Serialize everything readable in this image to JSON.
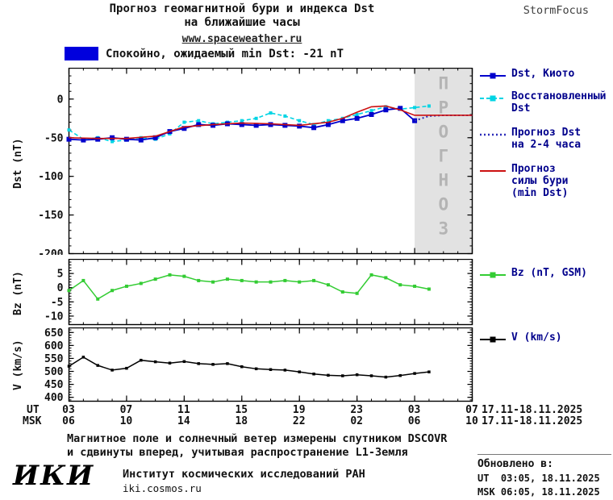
{
  "header": {
    "title_line1": "Прогноз геомагнитной бури и индекса Dst",
    "title_line2": "на ближайшие часы",
    "url": "www.spaceweather.ru",
    "brand": "StormFocus"
  },
  "status": {
    "swatch_color": "#0000dd",
    "label": "Спокойно, ожидаемый min Dst: -21 nT"
  },
  "legend_main": [
    {
      "label": "Dst, Киото",
      "color": "#0000cc",
      "style": "line-square"
    },
    {
      "label": "Восстановленный\nDst",
      "color": "#00d4e4",
      "style": "dash-square"
    },
    {
      "label": "Прогноз Dst\nна 2-4 часа",
      "color": "#2a2ab8",
      "style": "dotted"
    },
    {
      "label": "Прогноз\nсилы бури\n(min Dst)",
      "color": "#cc1111",
      "style": "line"
    }
  ],
  "legend_bz": {
    "label": "Bz (nT, GSM)",
    "color": "#33cc33",
    "style": "line-square"
  },
  "legend_v": {
    "label": "V (km/s)",
    "color": "#000000",
    "style": "line-square"
  },
  "xaxis": {
    "ut_label": "UT",
    "msk_label": "MSK",
    "ut_ticks": [
      "03",
      "07",
      "11",
      "15",
      "19",
      "23",
      "03",
      "07"
    ],
    "msk_ticks": [
      "06",
      "10",
      "14",
      "18",
      "22",
      "02",
      "06",
      "10"
    ],
    "ut_date": "17.11-18.11.2025",
    "msk_date": "17.11-18.11.2025"
  },
  "footer": {
    "note_line1": "Магнитное поле и солнечный ветер измерены спутником DSCOVR",
    "note_line2": "и сдвинуты вперед, учитывая распространение L1-Земля",
    "updated_title": "Обновлено в:",
    "updated_ut": "UT  03:05, 18.11.2025",
    "updated_msk": "MSK 06:05, 18.11.2025",
    "logo": "ИКИ",
    "institute": "Институт космических исследований РАН",
    "institute_url": "iki.cosmos.ru"
  },
  "chart_data": [
    {
      "id": "dst",
      "type": "line",
      "title": "Прогноз геомагнитной бури и индекса Dst на ближайшие часы",
      "ylabel": "Dst (nT)",
      "xlabel": "UT / MSK (hours, 17.11-18.11.2025)",
      "ylim": [
        -200,
        40
      ],
      "yticks": [
        0,
        -50,
        -100,
        -150,
        -200
      ],
      "y_minor_step": 10,
      "xlim": [
        3,
        31
      ],
      "xticks": [
        3,
        7,
        11,
        15,
        19,
        23,
        27,
        31
      ],
      "legend_position": "right",
      "forecast_region": {
        "x0": 27,
        "x1": 31,
        "color": "#e2e2e2",
        "label": "ПРОГНОЗ",
        "text_color": "#b4b4b4"
      },
      "series": [
        {
          "name": "Восстановленный Dst",
          "color": "#00d4e4",
          "dash": "5,3",
          "marker": "square",
          "marker_size": 4,
          "width": 1.6,
          "x": [
            3,
            4,
            5,
            6,
            7,
            8,
            9,
            10,
            11,
            12,
            13,
            14,
            15,
            16,
            17,
            18,
            19,
            20,
            21,
            22,
            23,
            24,
            25,
            26,
            27,
            28
          ],
          "y": [
            -40,
            -52,
            -50,
            -55,
            -53,
            -50,
            -52,
            -45,
            -30,
            -28,
            -32,
            -30,
            -28,
            -25,
            -18,
            -22,
            -28,
            -33,
            -28,
            -25,
            -20,
            -15,
            -10,
            -13,
            -11,
            -9
          ]
        },
        {
          "name": "Dst, Киото",
          "color": "#0000cc",
          "marker": "square",
          "marker_size": 6,
          "width": 1.8,
          "x": [
            3,
            4,
            5,
            6,
            7,
            8,
            9,
            10,
            11,
            12,
            13,
            14,
            15,
            16,
            17,
            18,
            19,
            20,
            21,
            22,
            23,
            24,
            25,
            26,
            27
          ],
          "y": [
            -52,
            -53,
            -52,
            -50,
            -52,
            -53,
            -50,
            -42,
            -38,
            -33,
            -34,
            -32,
            -33,
            -34,
            -33,
            -34,
            -35,
            -37,
            -33,
            -28,
            -25,
            -20,
            -14,
            -12,
            -28
          ]
        },
        {
          "name": "Прогноз Dst на 2-4 часа",
          "color": "#2a2ab8",
          "dash": "2,3",
          "width": 2,
          "x": [
            27,
            28,
            29,
            30,
            31
          ],
          "y": [
            -28,
            -22,
            -21,
            -21,
            -21
          ]
        },
        {
          "name": "Прогноз силы бури (min Dst)",
          "color": "#cc1111",
          "width": 1.6,
          "x": [
            3,
            5,
            7,
            9,
            11,
            13,
            15,
            17,
            19,
            21,
            22,
            23,
            24,
            25,
            26,
            27,
            28,
            29,
            30,
            31
          ],
          "y": [
            -50,
            -51,
            -51,
            -48,
            -36,
            -33,
            -31,
            -32,
            -34,
            -30,
            -25,
            -17,
            -10,
            -9,
            -14,
            -21,
            -21,
            -21,
            -21,
            -21
          ]
        }
      ]
    },
    {
      "id": "bz",
      "type": "line",
      "title": "Bz (nT, GSM)",
      "ylabel": "Bz (nT)",
      "ylim": [
        -13,
        10
      ],
      "yticks": [
        5,
        0,
        -5,
        -10
      ],
      "y_minor_step": 1,
      "xlim": [
        3,
        31
      ],
      "xticks": [
        3,
        7,
        11,
        15,
        19,
        23,
        27,
        31
      ],
      "series": [
        {
          "name": "Bz (nT, GSM)",
          "color": "#33cc33",
          "marker": "square",
          "marker_size": 4,
          "width": 1.5,
          "x": [
            3,
            4,
            5,
            6,
            7,
            8,
            9,
            10,
            11,
            12,
            13,
            14,
            15,
            16,
            17,
            18,
            19,
            20,
            21,
            22,
            23,
            24,
            25,
            26,
            27,
            28
          ],
          "y": [
            -1,
            2.5,
            -4,
            -1,
            0.5,
            1.5,
            3,
            4.5,
            4,
            2.5,
            2,
            3,
            2.5,
            2,
            2,
            2.5,
            2,
            2.5,
            1,
            -1.5,
            -2,
            4.5,
            3.5,
            1,
            0.5,
            -0.5
          ]
        }
      ]
    },
    {
      "id": "v",
      "type": "line",
      "title": "V (km/s)",
      "ylabel": "V (km/s)",
      "ylim": [
        385,
        668
      ],
      "yticks": [
        650,
        600,
        550,
        500,
        450,
        400
      ],
      "y_minor_step": 10,
      "xlim": [
        3,
        31
      ],
      "xticks": [
        3,
        7,
        11,
        15,
        19,
        23,
        27,
        31
      ],
      "series": [
        {
          "name": "V (km/s)",
          "color": "#000000",
          "marker": "square",
          "marker_size": 3.5,
          "width": 1.5,
          "x": [
            3,
            4,
            5,
            6,
            7,
            8,
            9,
            10,
            11,
            12,
            13,
            14,
            15,
            16,
            17,
            18,
            19,
            20,
            21,
            22,
            23,
            24,
            25,
            26,
            27,
            28
          ],
          "y": [
            520,
            555,
            523,
            505,
            512,
            543,
            537,
            532,
            538,
            530,
            527,
            530,
            518,
            510,
            507,
            505,
            498,
            490,
            485,
            483,
            487,
            483,
            478,
            484,
            492,
            498
          ]
        }
      ]
    }
  ]
}
